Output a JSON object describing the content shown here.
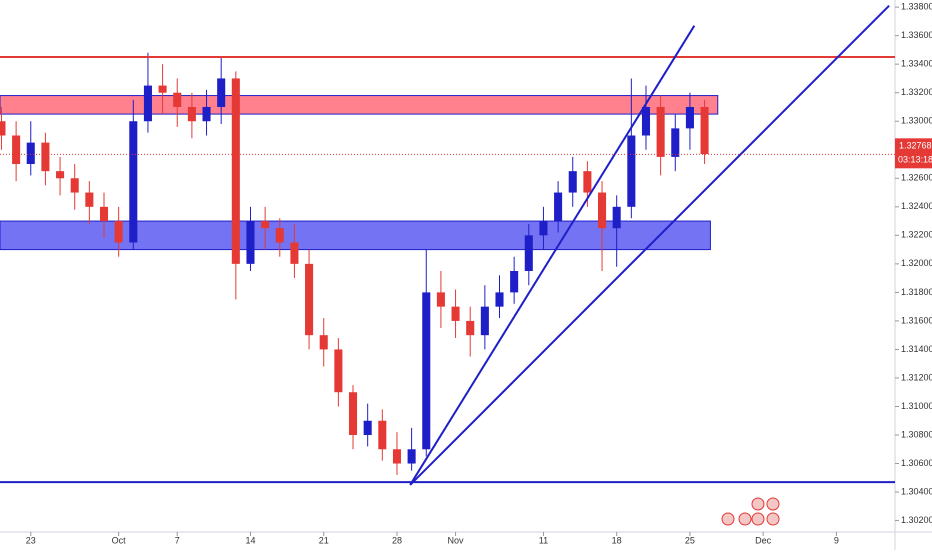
{
  "chart_data": {
    "type": "candlestick",
    "x": [
      -2,
      -1,
      0,
      1,
      2,
      3,
      4,
      5,
      6,
      7,
      8,
      9,
      10,
      11,
      12,
      13,
      14,
      15,
      16,
      17,
      18,
      19,
      20,
      21,
      22,
      23,
      24,
      25,
      26,
      27,
      28,
      29,
      30,
      31,
      32,
      33,
      34,
      35,
      36,
      37,
      38,
      39,
      40,
      41,
      42,
      43,
      44,
      45,
      46
    ],
    "open": [
      1.33,
      1.329,
      1.327,
      1.3285,
      1.3265,
      1.326,
      1.325,
      1.324,
      1.323,
      1.3215,
      1.33,
      1.3325,
      1.332,
      1.331,
      1.33,
      1.331,
      1.333,
      1.32,
      1.323,
      1.3225,
      1.3215,
      1.32,
      1.315,
      1.314,
      1.311,
      1.308,
      1.309,
      1.307,
      1.306,
      1.307,
      1.318,
      1.317,
      1.316,
      1.315,
      1.317,
      1.318,
      1.3195,
      1.322,
      1.323,
      1.325,
      1.3265,
      1.325,
      1.3225,
      1.324,
      1.329,
      1.331,
      1.3275,
      1.3295,
      1.331
    ],
    "high": [
      1.331,
      1.33,
      1.33,
      1.3292,
      1.3275,
      1.327,
      1.3258,
      1.325,
      1.324,
      1.3315,
      1.3348,
      1.334,
      1.333,
      1.332,
      1.3322,
      1.3345,
      1.3335,
      1.324,
      1.324,
      1.3232,
      1.3228,
      1.321,
      1.3162,
      1.3148,
      1.3115,
      1.3102,
      1.3098,
      1.3082,
      1.3085,
      1.321,
      1.3195,
      1.3182,
      1.317,
      1.3185,
      1.3192,
      1.3205,
      1.3228,
      1.324,
      1.3258,
      1.3275,
      1.3272,
      1.3258,
      1.3248,
      1.333,
      1.3325,
      1.3318,
      1.3305,
      1.332,
      1.3315
    ],
    "low": [
      1.328,
      1.3258,
      1.3262,
      1.3255,
      1.3248,
      1.3238,
      1.3228,
      1.3218,
      1.3205,
      1.321,
      1.3292,
      1.3305,
      1.3296,
      1.3288,
      1.329,
      1.3298,
      1.3175,
      1.3195,
      1.321,
      1.3205,
      1.319,
      1.314,
      1.3128,
      1.31,
      1.307,
      1.3072,
      1.3062,
      1.3052,
      1.3055,
      1.3065,
      1.3155,
      1.3148,
      1.3135,
      1.314,
      1.3162,
      1.3172,
      1.3185,
      1.321,
      1.3222,
      1.324,
      1.324,
      1.3195,
      1.3198,
      1.3232,
      1.328,
      1.3262,
      1.3265,
      1.328,
      1.327
    ],
    "close": [
      1.329,
      1.327,
      1.3285,
      1.3265,
      1.326,
      1.325,
      1.324,
      1.323,
      1.3215,
      1.33,
      1.3325,
      1.332,
      1.331,
      1.33,
      1.331,
      1.333,
      1.32,
      1.323,
      1.3225,
      1.3215,
      1.32,
      1.315,
      1.314,
      1.311,
      1.308,
      1.309,
      1.307,
      1.306,
      1.307,
      1.318,
      1.317,
      1.316,
      1.315,
      1.317,
      1.318,
      1.3195,
      1.322,
      1.323,
      1.325,
      1.3265,
      1.325,
      1.3225,
      1.324,
      1.329,
      1.331,
      1.3275,
      1.3295,
      1.331,
      1.3277
    ],
    "up_color": "#1f1fc8",
    "down_color": "#e53935",
    "xlim": [
      -2.1,
      59
    ],
    "xticks": [
      {
        "value": 0,
        "label": "23"
      },
      {
        "value": 6,
        "label": "Oct"
      },
      {
        "value": 10,
        "label": "7"
      },
      {
        "value": 15,
        "label": "14"
      },
      {
        "value": 20,
        "label": "21"
      },
      {
        "value": 25,
        "label": "28"
      },
      {
        "value": 29,
        "label": "Nov"
      },
      {
        "value": 35,
        "label": "11"
      },
      {
        "value": 40,
        "label": "18"
      },
      {
        "value": 45,
        "label": "25"
      },
      {
        "value": 50,
        "label": "Dec"
      },
      {
        "value": 55,
        "label": "9"
      }
    ],
    "ylim": [
      1.3012,
      1.3385
    ],
    "yticks": [
      {
        "value": 1.302,
        "label": "1.30200"
      },
      {
        "value": 1.304,
        "label": "1.30400"
      },
      {
        "value": 1.306,
        "label": "1.30600"
      },
      {
        "value": 1.308,
        "label": "1.30800"
      },
      {
        "value": 1.31,
        "label": "1.31000"
      },
      {
        "value": 1.312,
        "label": "1.31200"
      },
      {
        "value": 1.314,
        "label": "1.31400"
      },
      {
        "value": 1.316,
        "label": "1.31600"
      },
      {
        "value": 1.318,
        "label": "1.31800"
      },
      {
        "value": 1.32,
        "label": "1.32000"
      },
      {
        "value": 1.322,
        "label": "1.32200"
      },
      {
        "value": 1.324,
        "label": "1.32400"
      },
      {
        "value": 1.326,
        "label": "1.32600"
      },
      {
        "value": 1.328,
        "label": "1.32800"
      },
      {
        "value": 1.33,
        "label": "1.33000"
      },
      {
        "value": 1.332,
        "label": "1.33200"
      },
      {
        "value": 1.334,
        "label": "1.33400"
      },
      {
        "value": 1.336,
        "label": "1.33600"
      },
      {
        "value": 1.338,
        "label": "1.33800"
      }
    ],
    "horizontal_lines": [
      {
        "value": 1.3345,
        "color": "#e53935"
      },
      {
        "value": 1.3047,
        "color": "#1f1fc8"
      }
    ],
    "zones": [
      {
        "low": 1.3305,
        "high": 1.3318,
        "x_end": 46.9,
        "fill": "#ff6b7a"
      },
      {
        "low": 1.321,
        "high": 1.323,
        "x_end": 46.4,
        "fill": "#5a5af2"
      }
    ],
    "trendlines": [
      {
        "x": [
          25.9,
          45.3
        ],
        "y": [
          1.3045,
          1.3367
        ],
        "color": "#1f1fc8"
      },
      {
        "x": [
          25.9,
          58.6
        ],
        "y": [
          1.3045,
          1.3381
        ],
        "color": "#1f1fc8"
      }
    ],
    "last_price": 1.32768,
    "countdown": "03:13:18"
  }
}
